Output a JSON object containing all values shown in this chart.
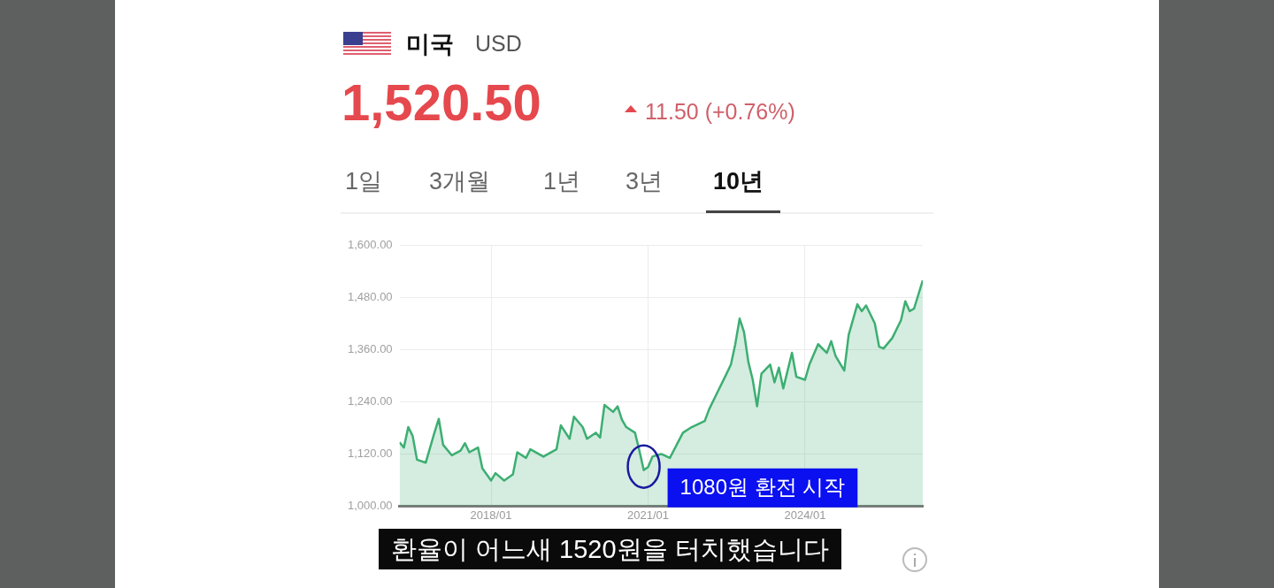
{
  "chart_data": {
    "type": "area",
    "title": "미국",
    "subtitle": "USD",
    "x": [
      "2016-04",
      "2016-05",
      "2016-06",
      "2016-07",
      "2016-08",
      "2016-10",
      "2016-12",
      "2017-01",
      "2017-02",
      "2017-04",
      "2017-06",
      "2017-07",
      "2017-08",
      "2017-10",
      "2017-11",
      "2018-01",
      "2018-02",
      "2018-04",
      "2018-06",
      "2018-07",
      "2018-09",
      "2018-10",
      "2019-01",
      "2019-04",
      "2019-05",
      "2019-07",
      "2019-08",
      "2019-10",
      "2019-11",
      "2020-01",
      "2020-02",
      "2020-03",
      "2020-05",
      "2020-06",
      "2020-07",
      "2020-08",
      "2020-10",
      "2020-11",
      "2020-12",
      "2021-01",
      "2021-02",
      "2021-04",
      "2021-06",
      "2021-09",
      "2021-11",
      "2022-02",
      "2022-03",
      "2022-05",
      "2022-07",
      "2022-08",
      "2022-09",
      "2022-10",
      "2022-11",
      "2022-12",
      "2023-01",
      "2023-02",
      "2023-03",
      "2023-05",
      "2023-06",
      "2023-07",
      "2023-08",
      "2023-10",
      "2023-11",
      "2024-01",
      "2024-02",
      "2024-04",
      "2024-06",
      "2024-07",
      "2024-08",
      "2024-10",
      "2024-11",
      "2025-01",
      "2025-02",
      "2025-03",
      "2025-05",
      "2025-06",
      "2025-07",
      "2025-09",
      "2025-11",
      "2025-12",
      "2026-01",
      "2026-02",
      "2026-04"
    ],
    "series": [
      {
        "color": "#3dae72",
        "values": [
          1147,
          1135,
          1182,
          1162,
          1107,
          1100,
          1169,
          1201,
          1141,
          1117,
          1128,
          1145,
          1124,
          1135,
          1087,
          1059,
          1076,
          1059,
          1073,
          1124,
          1111,
          1131,
          1114,
          1131,
          1186,
          1155,
          1206,
          1182,
          1155,
          1169,
          1158,
          1233,
          1217,
          1230,
          1199,
          1182,
          1169,
          1128,
          1083,
          1090,
          1114,
          1120,
          1111,
          1169,
          1182,
          1196,
          1223,
          1264,
          1305,
          1326,
          1373,
          1432,
          1401,
          1332,
          1291,
          1230,
          1305,
          1326,
          1285,
          1319,
          1271,
          1353,
          1298,
          1291,
          1326,
          1373,
          1353,
          1380,
          1346,
          1312,
          1394,
          1465,
          1449,
          1462,
          1421,
          1367,
          1363,
          1387,
          1428,
          1472,
          1449,
          1455,
          1520
        ]
      }
    ],
    "xlim": [
      "2016-04",
      "2026-04"
    ],
    "xticks": [
      {
        "value": "2018-01",
        "label": "2018/01"
      },
      {
        "value": "2021-01",
        "label": "2021/01"
      },
      {
        "value": "2024-01",
        "label": "2024/01"
      }
    ],
    "ylim": [
      1000,
      1600
    ],
    "yticks": [
      {
        "value": 1000,
        "label": "1,000.00"
      },
      {
        "value": 1120,
        "label": "1,120.00"
      },
      {
        "value": 1240,
        "label": "1,240.00"
      },
      {
        "value": 1360,
        "label": "1,360.00"
      },
      {
        "value": 1480,
        "label": "1,480.00"
      },
      {
        "value": 1600,
        "label": "1,600.00"
      }
    ],
    "grid": true,
    "legend": false,
    "marker": "none",
    "line_style": "solid",
    "annotations": [
      "1,520.50",
      "11.50 (+0.76%)",
      "1일",
      "3개월",
      "1년",
      "3년",
      "10년",
      {
        "text": "1080원 환전 시작",
        "x": "2020-12",
        "y": 1083
      },
      "환율이 어느새 1520원을 터치했습니다"
    ]
  }
}
